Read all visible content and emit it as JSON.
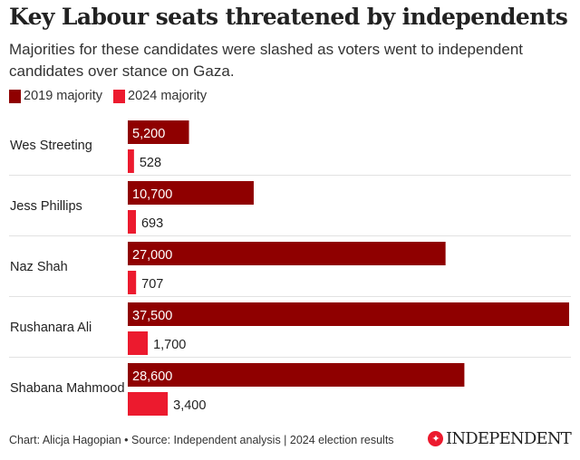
{
  "chart_data": {
    "type": "bar",
    "orientation": "horizontal",
    "title": "Key Labour seats threatened by independents",
    "subtitle": "Majorities for these candidates were slashed as voters went to independent candidates over stance on Gaza.",
    "categories": [
      "Wes Streeting",
      "Jess Phillips",
      "Naz Shah",
      "Rushanara Ali",
      "Shabana Mahmood"
    ],
    "series": [
      {
        "name": "2019 majority",
        "color": "#8f0000",
        "values": [
          5200,
          10700,
          27000,
          37500,
          28600
        ],
        "labels": [
          "5,200",
          "10,700",
          "27,000",
          "37,500",
          "28,600"
        ]
      },
      {
        "name": "2024 majority",
        "color": "#ec1a2e",
        "values": [
          528,
          693,
          707,
          1700,
          3400
        ],
        "labels": [
          "528",
          "693",
          "707",
          "1,700",
          "3,400"
        ]
      }
    ],
    "xlim": [
      0,
      37500
    ],
    "grid": false,
    "legend": "top-left"
  },
  "footer": "Chart: Alicja Hagopian • Source: Independent analysis | 2024 election results",
  "logo": "INDEPENDENT"
}
